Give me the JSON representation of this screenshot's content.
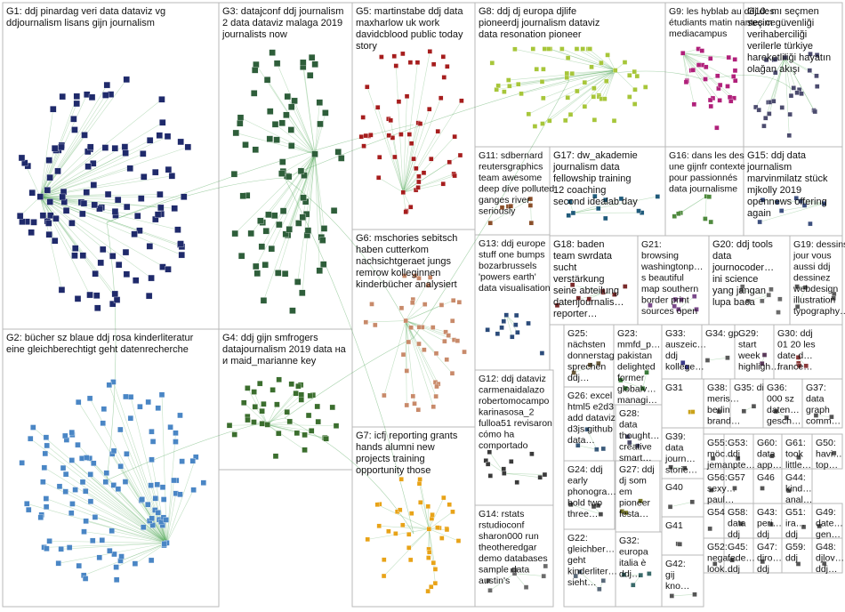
{
  "graph_title": "",
  "colors": {
    "G1": "#1f2a6b",
    "G2": "#4a86c5",
    "G3": "#2e5e3a",
    "G4": "#3b6e2e",
    "G5": "#a61d1d",
    "G6": "#c88a6a",
    "G7": "#e8a318",
    "G8": "#a7c63a",
    "G9": "#b0207a",
    "G10": "#4b4b6e",
    "G11": "#8a4f2a",
    "G12": "#3a3a3a",
    "G13": "#2b4b7a",
    "G14": "#6b6b6b",
    "G15": "#3c4f7e",
    "G16": "#4f8a3e",
    "G17": "#1f5a7a",
    "G18": "#7a2b2b",
    "G19": "#5a5a5a",
    "G20": "#6a6a6a",
    "G21": "#7a4a8a",
    "G22": "#5a6a7a",
    "G23": "#3a7a3a",
    "G24": "#4a4a4a",
    "G25": "#6a5a3a",
    "G26": "#3a5a7a",
    "G27": "#7a7a2a",
    "G28": "#4a4a6a",
    "G29": "#5a3a5a",
    "G30": "#8a3a3a",
    "G31": "#caa21a",
    "G32": "#3a6a6a",
    "G33": "#3a3a8a",
    "G34": "#5a5a5a",
    "edge": "#52a85a"
  },
  "groups": [
    {
      "id": "G1",
      "label": [
        "G1: ddj pinardag veri data dataviz vg",
        "ddjournalism lisans gijn journalism"
      ]
    },
    {
      "id": "G2",
      "label": [
        "G2: bücher sz blaue ddj rosa kinderliteratur",
        "eine gleichberechtigt geht datenrecherche"
      ]
    },
    {
      "id": "G3",
      "label": [
        "G3: datajconf ddj journalism",
        "2 data dataviz malaga 2019",
        "journalists now"
      ]
    },
    {
      "id": "G4",
      "label": [
        "G4: ddj gijn smfrogers",
        "datajournalism 2019 data на",
        "и maid_marianne key"
      ]
    },
    {
      "id": "G5",
      "label": [
        "G5: martinstabe ddj data",
        "maxharlow uk work",
        "davidcblood public today",
        "story"
      ]
    },
    {
      "id": "G6",
      "label": [
        "G6: mschories sebitsch",
        "haben cutterkom",
        "nachsichtgeraet jungs",
        "remrow kolleginnen",
        "kinderbücher analysiert"
      ]
    },
    {
      "id": "G7",
      "label": [
        "G7: icfj reporting grants",
        "hands alumni new",
        "projects training",
        "opportunity those"
      ]
    },
    {
      "id": "G8",
      "label": [
        "G8: ddj dj europa djlife",
        "pioneerdj journalism dataviz",
        "data resonation pioneer"
      ]
    },
    {
      "id": "G9",
      "label": [
        "G9: les hyblab au ddj des",
        "étudiants matin nantes ce",
        "mediacampus"
      ]
    },
    {
      "id": "G10",
      "label": [
        "G10: mı seçmen",
        "seçim güvenliği",
        "verihaberciliği",
        "verilerle türkiye",
        "hareketliliği hayatın",
        "olağan akışı"
      ]
    },
    {
      "id": "G11",
      "label": [
        "G11: sdbernard",
        "reutersgraphics",
        "team awesome",
        "deep dive polluted",
        "ganges river",
        "seriously"
      ]
    },
    {
      "id": "G12",
      "label": [
        "G12: ddj dataviz",
        "carmenaidalazo",
        "robertomocampo",
        "karinasosa_2",
        "fulloa51 revisaron",
        "cómo ha",
        "comportado"
      ]
    },
    {
      "id": "G13",
      "label": [
        "G13: ddj europe",
        "stuff one bumps",
        "bozarbrussels",
        "'powers earth'",
        "data visualisation"
      ]
    },
    {
      "id": "G14",
      "label": [
        "G14: rstats",
        "rstudioconf",
        "sharon000 run",
        "theotheredgar",
        "demo databases",
        "sample data",
        "austin's"
      ]
    },
    {
      "id": "G15",
      "label": [
        "G15: ddj data",
        "journalism",
        "marvinmilatz stück",
        "mjkolly 2019",
        "opennews offering",
        "again"
      ]
    },
    {
      "id": "G16",
      "label": [
        "G16: dans les des",
        "une gijnfr contexte",
        "pour passionnés",
        "data journalisme"
      ]
    },
    {
      "id": "G17",
      "label": [
        "G17: dw_akademie",
        "journalism data",
        "fellowship training",
        "12 coaching",
        "second idealab day"
      ]
    },
    {
      "id": "G18",
      "label": [
        "G18: baden",
        "team swrdata",
        "sucht",
        "verstärkung",
        "seine abteilung",
        "datenjournalis…",
        "reporter…"
      ]
    },
    {
      "id": "G19",
      "label": [
        "G19: dessins",
        "jour vous",
        "aussi ddj",
        "dessinez",
        "webdesign",
        "illustration",
        "typography…"
      ]
    },
    {
      "id": "G20",
      "label": [
        "G20: ddj tools",
        "data",
        "journocoder…",
        "ini science",
        "yang jangan",
        "lupa baca"
      ]
    },
    {
      "id": "G21",
      "label": [
        "G21:",
        "browsing",
        "washingtonp…",
        "s beautiful",
        "map southern",
        "border print",
        "sources open"
      ]
    },
    {
      "id": "G22",
      "label": [
        "G22:",
        "gleichber…",
        "geht",
        "kinderliter…",
        "sieht…"
      ]
    },
    {
      "id": "G23",
      "label": [
        "G23:",
        "mmfd_p…",
        "pakistan",
        "delighted",
        "former",
        "globalv…",
        "managi…"
      ]
    },
    {
      "id": "G24",
      "label": [
        "G24: ddj",
        "early",
        "phonogra…",
        "hold two",
        "three…"
      ]
    },
    {
      "id": "G25",
      "label": [
        "G25:",
        "nächsten",
        "donnerstag",
        "sprechen",
        "ddj…"
      ]
    },
    {
      "id": "G26",
      "label": [
        "G26: excel",
        "html5 e2d3",
        "add dataviz",
        "d3js github",
        "data…"
      ]
    },
    {
      "id": "G27",
      "label": [
        "G27: ddj",
        "dj som",
        "em",
        "pioneer",
        "festa…"
      ]
    },
    {
      "id": "G28",
      "label": [
        "G28:",
        "data",
        "thought…",
        "creative",
        "smart…"
      ]
    },
    {
      "id": "G29",
      "label": [
        "G29:",
        "start",
        "week",
        "highligh…"
      ]
    },
    {
      "id": "G30",
      "label": [
        "G30: ddj",
        "01 20 les",
        "date d…",
        "france…"
      ]
    },
    {
      "id": "G31",
      "label": [
        "G31"
      ]
    },
    {
      "id": "G32",
      "label": [
        "G32:",
        "europa",
        "italia è",
        "ddj…"
      ]
    },
    {
      "id": "G33",
      "label": [
        "G33:",
        "auszeic…",
        "ddj",
        "kollege…"
      ]
    },
    {
      "id": "G34",
      "label": [
        "G34: gp"
      ]
    },
    {
      "id": "G35",
      "label": [
        "G35: di"
      ]
    },
    {
      "id": "G36",
      "label": [
        "G36:",
        "000 sz",
        "daten…",
        "gesch…"
      ]
    },
    {
      "id": "G37",
      "label": [
        "G37:",
        "data",
        "graph",
        "comm…"
      ]
    },
    {
      "id": "G38",
      "label": [
        "G38:",
        "meris…",
        "berlin",
        "brand…"
      ]
    },
    {
      "id": "G39",
      "label": [
        "G39:",
        "data",
        "journ…",
        "storie…"
      ]
    },
    {
      "id": "G40",
      "label": [
        "G40"
      ]
    },
    {
      "id": "G41",
      "label": [
        "G41"
      ]
    },
    {
      "id": "G42",
      "label": [
        "G42:",
        "gij",
        "kno…"
      ]
    },
    {
      "id": "G43",
      "label": [
        "G43:",
        "peri…",
        "ddj"
      ]
    },
    {
      "id": "G44",
      "label": [
        "G44:",
        "kind…",
        "anal…"
      ]
    },
    {
      "id": "G45",
      "label": [
        "G45:",
        "fede…",
        "ddj"
      ]
    },
    {
      "id": "G46",
      "label": [
        "G46"
      ]
    },
    {
      "id": "G47",
      "label": [
        "G47:",
        "diro…",
        "ddj"
      ]
    },
    {
      "id": "G48",
      "label": [
        "G48:",
        "djlov…",
        "ddj…"
      ]
    },
    {
      "id": "G49",
      "label": [
        "G49:",
        "date…",
        "gen…"
      ]
    },
    {
      "id": "G50",
      "label": [
        "G50:",
        "havi…",
        "top…"
      ]
    },
    {
      "id": "G51",
      "label": [
        "G51:",
        "ira…",
        "ddj"
      ]
    },
    {
      "id": "G52",
      "label": [
        "G52:",
        "nega…",
        "look…"
      ]
    },
    {
      "id": "G53",
      "label": [
        "G53:",
        "ddj",
        "npte…"
      ]
    },
    {
      "id": "G54",
      "label": [
        "G54"
      ]
    },
    {
      "id": "G55",
      "label": [
        "G55:",
        "möc…",
        "jema…"
      ]
    },
    {
      "id": "G56",
      "label": [
        "G56:",
        "sexy…",
        "paul…"
      ]
    },
    {
      "id": "G57",
      "label": [
        "G57"
      ]
    },
    {
      "id": "G58",
      "label": [
        "G58:",
        "data",
        "ddj"
      ]
    },
    {
      "id": "G59",
      "label": [
        "G59:",
        "ddj"
      ]
    },
    {
      "id": "G60",
      "label": [
        "G60:",
        "data",
        "app…"
      ]
    },
    {
      "id": "G61",
      "label": [
        "G61:",
        "took",
        "little…"
      ]
    }
  ]
}
